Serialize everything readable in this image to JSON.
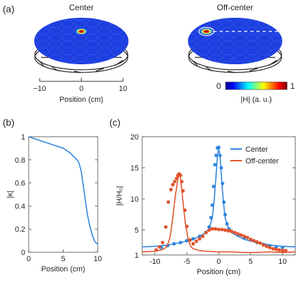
{
  "panels": {
    "a": "(a)",
    "b": "(b)",
    "c": "(c)"
  },
  "panel_a": {
    "disk_titles": [
      "Center",
      "Off-center"
    ],
    "axis_ticks": [
      "−10",
      "0",
      "10"
    ],
    "xlabel": "Position (cm)",
    "colorbar": {
      "min_label": "0",
      "max_label": "1",
      "label": "|H| (a. u.)"
    }
  },
  "colors": {
    "center": "#2e86de",
    "off_center": "#e0532a",
    "disk": "#1d3fe0"
  },
  "chart_data": [
    {
      "type": "line",
      "panel": "(b)",
      "xlabel": "Position (cm)",
      "ylabel": "|κ|",
      "xlim": [
        0,
        10
      ],
      "ylim": [
        0,
        1
      ],
      "x_ticks": [
        "0",
        "5",
        "10"
      ],
      "y_ticks": [
        "0",
        "0.2",
        "0.4",
        "0.6",
        "0.8",
        "1"
      ],
      "series": [
        {
          "x": [
            0,
            1,
            2,
            3,
            4,
            5,
            6,
            6.5,
            7,
            7.3,
            7.6,
            7.9,
            8.2,
            8.5,
            8.8,
            9.2,
            9.6,
            10
          ],
          "values": [
            1.0,
            0.98,
            0.96,
            0.94,
            0.92,
            0.9,
            0.86,
            0.83,
            0.8,
            0.77,
            0.7,
            0.58,
            0.45,
            0.33,
            0.24,
            0.15,
            0.09,
            0.07
          ]
        }
      ]
    },
    {
      "type": "line",
      "panel": "(c)",
      "xlabel": "Position (cm)",
      "ylabel": "|H/H₀|",
      "xlim": [
        -12,
        12
      ],
      "ylim": [
        1,
        20
      ],
      "x_ticks": [
        "-10",
        "-5",
        "0",
        "5",
        "10"
      ],
      "y_ticks": [
        "1",
        "5",
        "10",
        "15",
        "20"
      ],
      "legend": {
        "position": "top-right"
      },
      "series": [
        {
          "name": "Center",
          "kind": "fit",
          "color": "#2e86de",
          "x": [
            -12,
            -10,
            -8,
            -6,
            -4,
            -3,
            -2,
            -1.5,
            -1,
            -0.7,
            -0.4,
            -0.2,
            0,
            0.2,
            0.4,
            0.7,
            1,
            1.5,
            2,
            3,
            4,
            6,
            8,
            10,
            12
          ],
          "values": [
            2.3,
            2.4,
            2.6,
            3.0,
            3.5,
            4.0,
            4.6,
            5.3,
            7.0,
            10.0,
            14.0,
            17.0,
            18.0,
            17.0,
            14.0,
            10.0,
            7.0,
            5.3,
            4.6,
            4.0,
            3.5,
            3.0,
            2.6,
            2.4,
            2.3
          ]
        },
        {
          "name": "Center",
          "kind": "data",
          "color": "#2e86de",
          "x": [
            -9,
            -8,
            -7,
            -6,
            -5,
            -4,
            -3,
            -2,
            -1.5,
            -1.2,
            -1,
            -0.8,
            -0.6,
            -0.4,
            -0.2,
            0,
            0.2,
            0.4,
            0.6,
            0.8,
            1,
            1.3,
            1.6,
            2,
            3,
            4,
            5,
            6,
            7,
            8,
            9,
            10
          ],
          "values": [
            2.2,
            2.5,
            2.8,
            3.0,
            3.3,
            3.6,
            4.0,
            4.6,
            5.5,
            7.0,
            9.0,
            12.0,
            15.5,
            17.0,
            18.2,
            18.3,
            17.0,
            15.0,
            12.5,
            9.5,
            7.5,
            6.0,
            5.2,
            4.8,
            4.2,
            3.8,
            3.4,
            3.0,
            2.7,
            2.5,
            2.3,
            2.2
          ]
        },
        {
          "name": "Off-center",
          "kind": "fit",
          "color": "#e0532a",
          "x": [
            -12,
            -10,
            -9,
            -8.5,
            -8,
            -7.6,
            -7.2,
            -6.8,
            -6.4,
            -6.2,
            -6.0,
            -5.8,
            -5.5,
            -5.2,
            -4.8,
            -4.4,
            -4,
            -3,
            -2,
            0,
            2,
            4,
            6,
            8,
            10,
            12
          ],
          "values": [
            1.5,
            1.6,
            1.8,
            2.0,
            2.6,
            4.0,
            7.0,
            10.5,
            13.2,
            14.0,
            13.5,
            11.5,
            8.5,
            5.8,
            3.6,
            2.4,
            2.0,
            1.7,
            1.6,
            1.5,
            1.5,
            1.4,
            1.4,
            1.5,
            1.4,
            1.5
          ]
        },
        {
          "name": "Off-center",
          "kind": "data",
          "color": "#e0532a",
          "x": [
            -9.8,
            -9.3,
            -8.8,
            -8.3,
            -7.9,
            -7.5,
            -7.2,
            -6.9,
            -6.6,
            -6.4,
            -6.2,
            -6.0,
            -5.8,
            -5.6,
            -5.3,
            -5.0,
            -4.5,
            -4.0,
            -3.5,
            -3.0,
            -2.5,
            -2.0,
            -1.5,
            -1.0,
            -0.5,
            0,
            0.5,
            1,
            1.5,
            2,
            2.5,
            3,
            3.5,
            4,
            4.5,
            5,
            5.5,
            6,
            6.5,
            7,
            7.5,
            8,
            8.5,
            9,
            9.5,
            10,
            10.5
          ],
          "values": [
            1.8,
            2.3,
            3.0,
            5.5,
            9.5,
            11.5,
            12.3,
            12.8,
            13.3,
            13.8,
            14.0,
            13.8,
            12.8,
            11.3,
            8.2,
            5.6,
            3.4,
            2.8,
            3.2,
            3.6,
            4.0,
            4.6,
            5.0,
            5.2,
            5.2,
            5.1,
            5.1,
            5.0,
            4.9,
            4.8,
            4.6,
            4.4,
            4.2,
            4.0,
            3.8,
            3.5,
            3.3,
            3.1,
            2.9,
            2.6,
            2.4,
            2.2,
            2.0,
            1.9,
            1.8,
            1.7,
            1.7
          ]
        }
      ]
    }
  ]
}
